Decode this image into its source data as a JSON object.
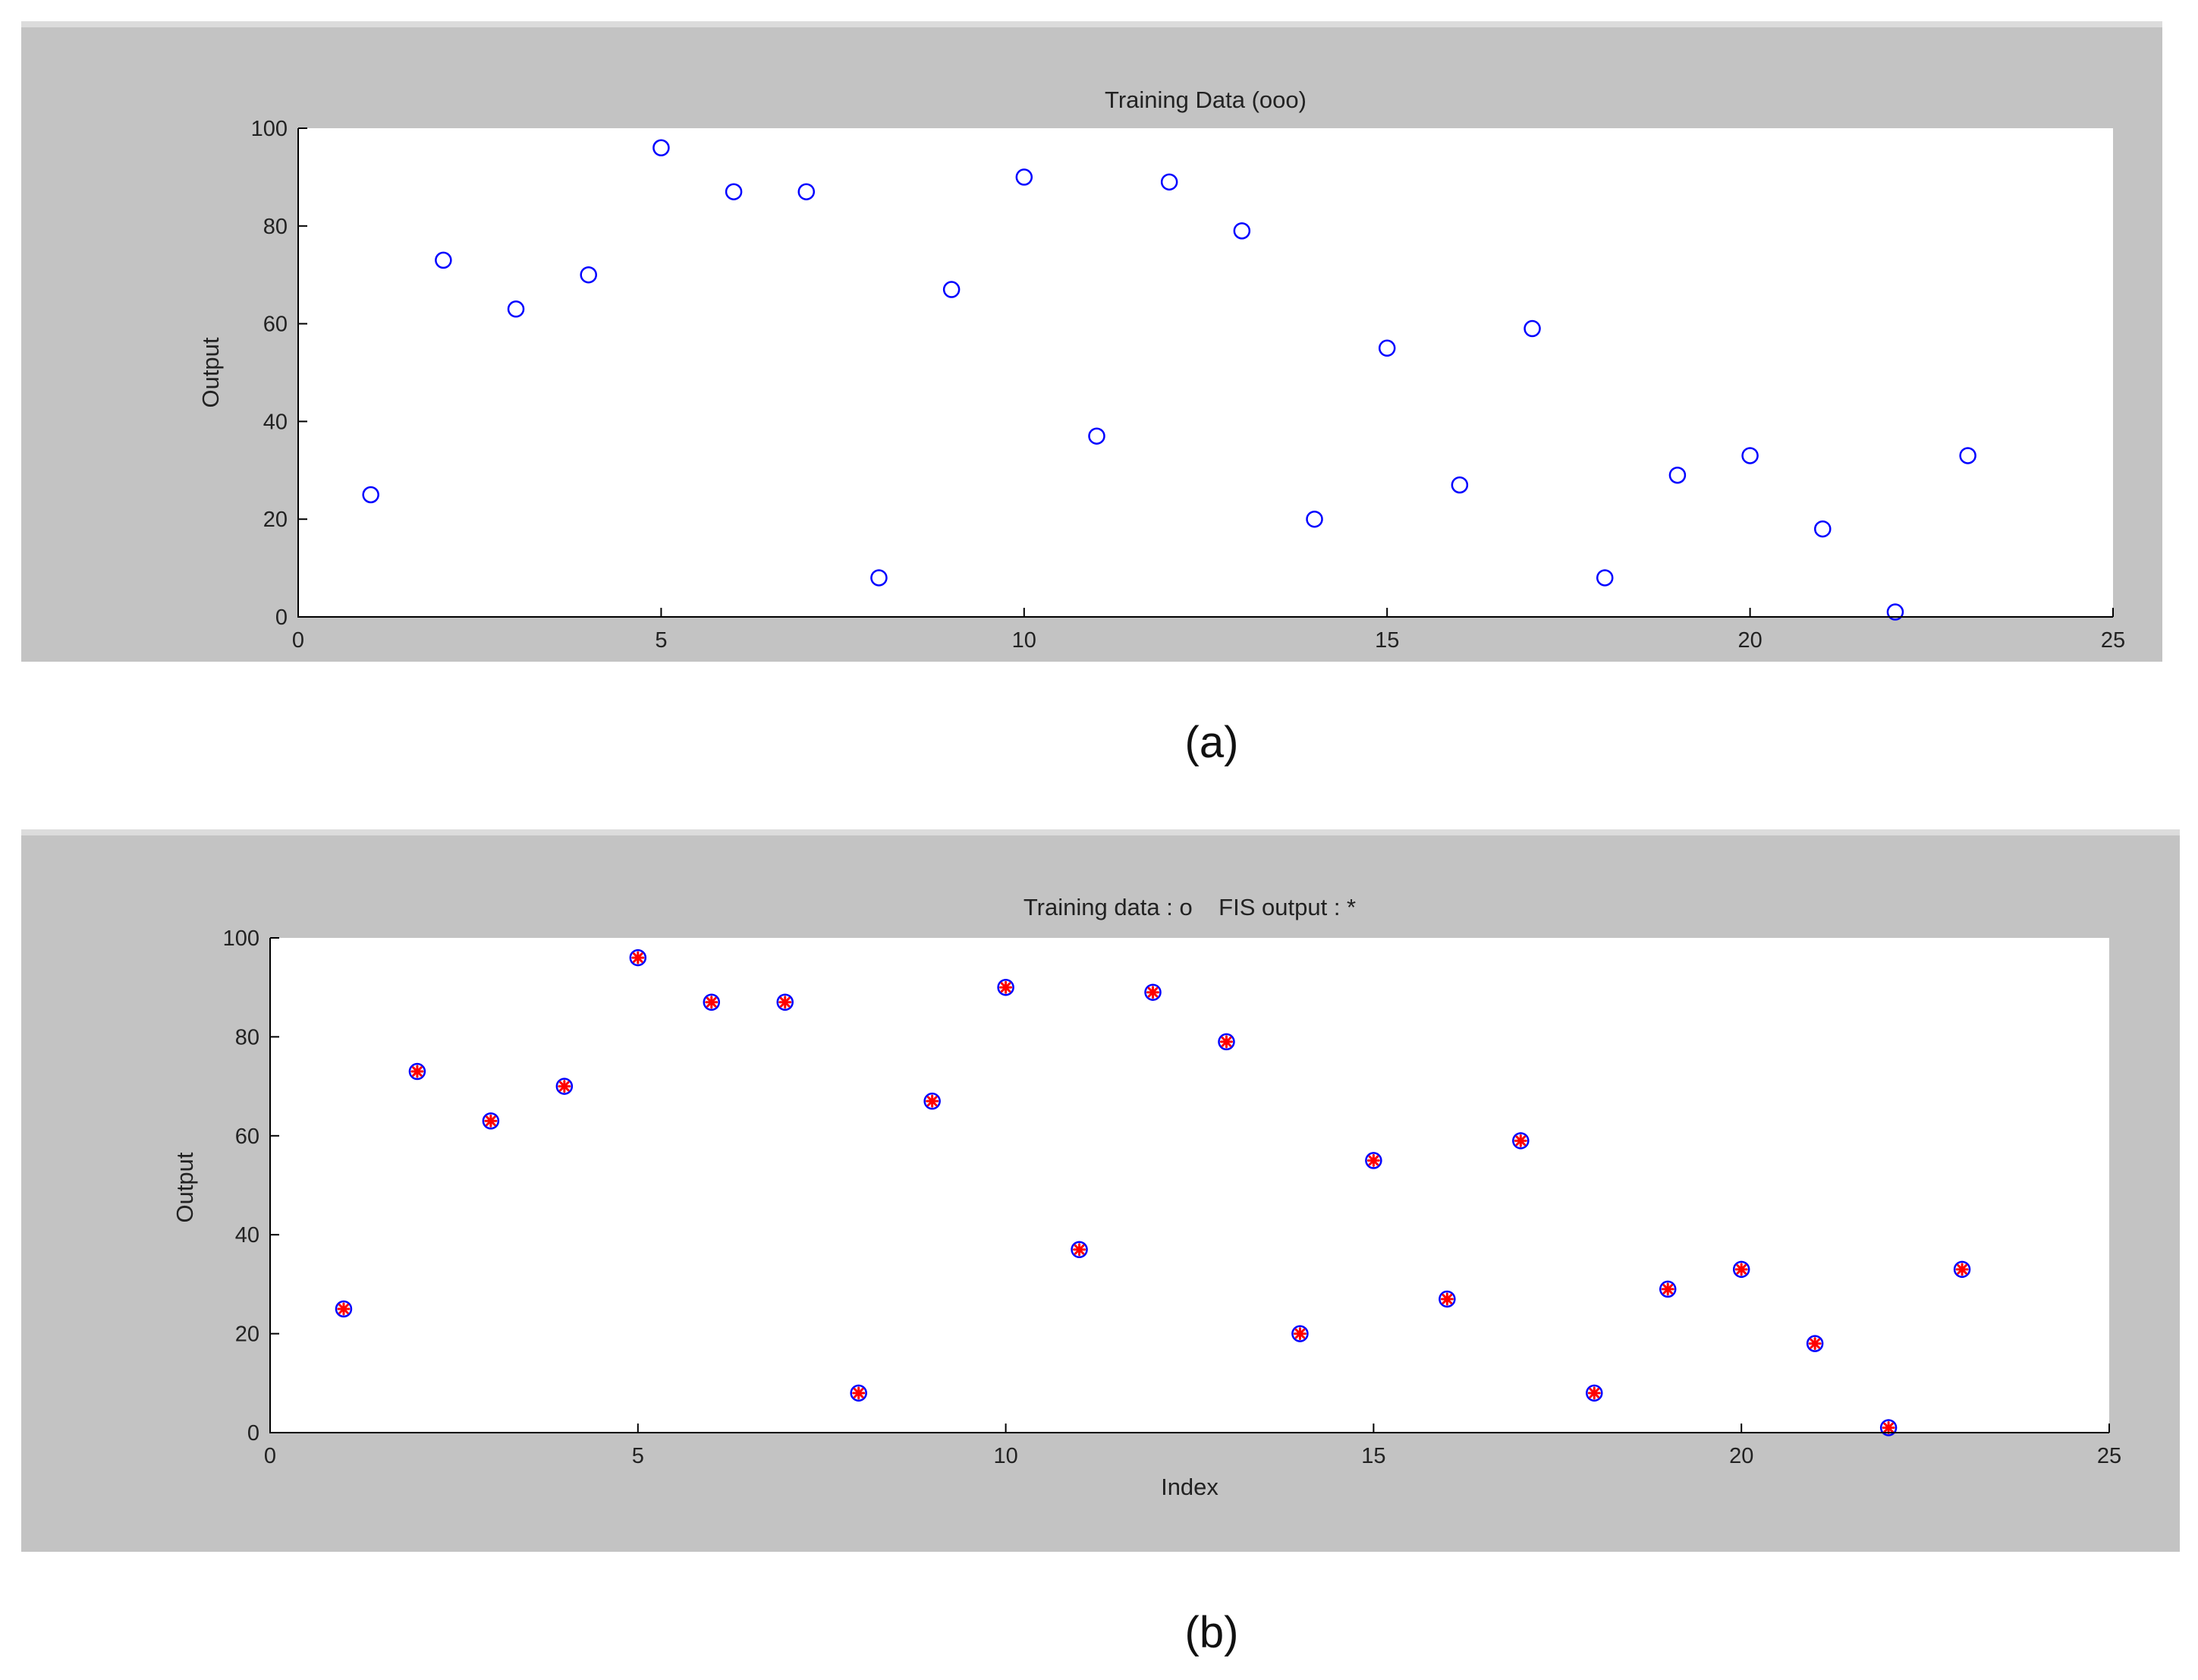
{
  "colors": {
    "figure_background": "#c3c3c3",
    "axes_background": "#ffffff",
    "training_marker": "#0000ff",
    "fis_marker": "#ff0000"
  },
  "chart_data": [
    {
      "id": "a",
      "type": "scatter",
      "title": "Training Data (ooo)",
      "xlabel": "",
      "ylabel": "Output",
      "xlim": [
        0,
        25
      ],
      "ylim": [
        0,
        100
      ],
      "xticks": [
        0,
        5,
        10,
        15,
        20,
        25
      ],
      "yticks": [
        0,
        20,
        40,
        60,
        80,
        100
      ],
      "grid": false,
      "caption": "(a)",
      "series": [
        {
          "marker": "circle",
          "color": "#0000ff",
          "x": [
            1,
            2,
            3,
            4,
            5,
            6,
            7,
            8,
            9,
            10,
            11,
            12,
            13,
            14,
            15,
            16,
            17,
            18,
            19,
            20,
            21,
            22,
            23
          ],
          "y": [
            25,
            73,
            63,
            70,
            96,
            87,
            87,
            8,
            67,
            90,
            37,
            89,
            79,
            20,
            55,
            27,
            59,
            8,
            29,
            33,
            18,
            1,
            33
          ]
        }
      ]
    },
    {
      "id": "b",
      "type": "scatter",
      "title": "Training data : o    FIS output : *",
      "xlabel": "Index",
      "ylabel": "Output",
      "xlim": [
        0,
        25
      ],
      "ylim": [
        0,
        100
      ],
      "xticks": [
        0,
        5,
        10,
        15,
        20,
        25
      ],
      "yticks": [
        0,
        20,
        40,
        60,
        80,
        100
      ],
      "grid": false,
      "caption": "(b)",
      "series": [
        {
          "marker": "circle",
          "color": "#0000ff",
          "x": [
            1,
            2,
            3,
            4,
            5,
            6,
            7,
            8,
            9,
            10,
            11,
            12,
            13,
            14,
            15,
            16,
            17,
            18,
            19,
            20,
            21,
            22,
            23
          ],
          "y": [
            25,
            73,
            63,
            70,
            96,
            87,
            87,
            8,
            67,
            90,
            37,
            89,
            79,
            20,
            55,
            27,
            59,
            8,
            29,
            33,
            18,
            1,
            33
          ]
        },
        {
          "marker": "star",
          "color": "#ff0000",
          "x": [
            1,
            2,
            3,
            4,
            5,
            6,
            7,
            8,
            9,
            10,
            11,
            12,
            13,
            14,
            15,
            16,
            17,
            18,
            19,
            20,
            21,
            22,
            23
          ],
          "y": [
            25,
            73,
            63,
            70,
            96,
            87,
            87,
            8,
            67,
            90,
            37,
            89,
            79,
            20,
            55,
            27,
            59,
            8,
            29,
            33,
            18,
            1,
            33
          ]
        }
      ]
    }
  ]
}
